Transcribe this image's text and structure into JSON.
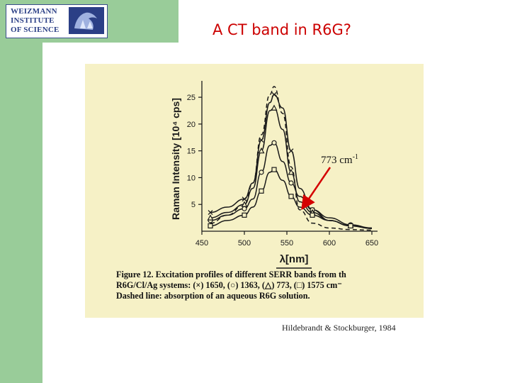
{
  "logo": {
    "lines": [
      "WEIZMANN",
      "INSTITUTE",
      "OF SCIENCE"
    ]
  },
  "slide": {
    "title": "A CT band in R6G?",
    "credit": "Hildebrandt & Stockburger, 1984",
    "annotation": {
      "text": "773 cm",
      "superscript": "-1"
    },
    "caption": {
      "figure_label": "Figure 12.",
      "line1": "Excitation profiles of different SERR bands from th",
      "line2": "R6G/Cl/Ag systems: (×) 1650, (○) 1363, (△) 773, (□) 1575 cm⁻",
      "line3": "Dashed line: absorption of an aqueous R6G solution."
    }
  },
  "colors": {
    "sidebar": "#99cc99",
    "title": "#cc0000",
    "figure_bg": "#f6f1c6",
    "arrow": "#d40000",
    "logo_blue": "#2b3f86"
  },
  "chart_data": {
    "type": "line",
    "xlabel": "λ[nm]",
    "ylabel": "Raman Intensity [10⁴ cps]",
    "xlim": [
      450,
      650
    ],
    "ylim": [
      0,
      27
    ],
    "x_ticks": [
      450,
      500,
      550,
      600,
      650
    ],
    "x_tick_labels": [
      "450",
      "500",
      "550",
      "600",
      "650"
    ],
    "y_ticks": [
      5,
      10,
      15,
      20,
      25
    ],
    "y_tick_labels": [
      "5",
      "10",
      "15",
      "20",
      "25"
    ],
    "grid": false,
    "series": [
      {
        "marker": "×",
        "x": [
          460,
          480,
          500,
          510,
          520,
          530,
          535,
          545,
          555,
          565,
          580,
          600,
          625,
          650
        ],
        "y": [
          3.5,
          4.5,
          6,
          9,
          17,
          24,
          25.5,
          23,
          15,
          8,
          4,
          2,
          1,
          0.6
        ]
      },
      {
        "marker": "○",
        "x": [
          460,
          480,
          500,
          510,
          520,
          530,
          535,
          545,
          555,
          565,
          580,
          600,
          625,
          650
        ],
        "y": [
          2,
          3,
          4.2,
          6,
          11,
          16,
          16.5,
          13,
          9,
          6.5,
          4,
          2.5,
          1.2,
          0.6
        ]
      },
      {
        "marker": "△",
        "x": [
          460,
          480,
          500,
          510,
          520,
          530,
          535,
          545,
          555,
          565,
          580,
          600,
          625,
          650
        ],
        "y": [
          2.5,
          3.5,
          5,
          8,
          15,
          22.5,
          23,
          19,
          11,
          5.5,
          3.5,
          2,
          1,
          0.5
        ]
      },
      {
        "marker": "□",
        "x": [
          460,
          480,
          500,
          510,
          520,
          530,
          535,
          545,
          555,
          565,
          580,
          600,
          625,
          650
        ],
        "y": [
          1,
          2,
          3,
          4.5,
          7.5,
          11,
          11.5,
          9.5,
          6.5,
          4.5,
          3,
          2,
          1,
          0.5
        ]
      },
      {
        "marker": "none",
        "dashed": true,
        "x": [
          460,
          480,
          500,
          510,
          520,
          530,
          535,
          545,
          555,
          565,
          580,
          600,
          625,
          650
        ],
        "y": [
          1.5,
          3,
          5,
          9,
          18,
          25.5,
          27,
          22,
          12,
          4,
          1.5,
          0.6,
          0.3,
          0.2
        ]
      }
    ]
  }
}
